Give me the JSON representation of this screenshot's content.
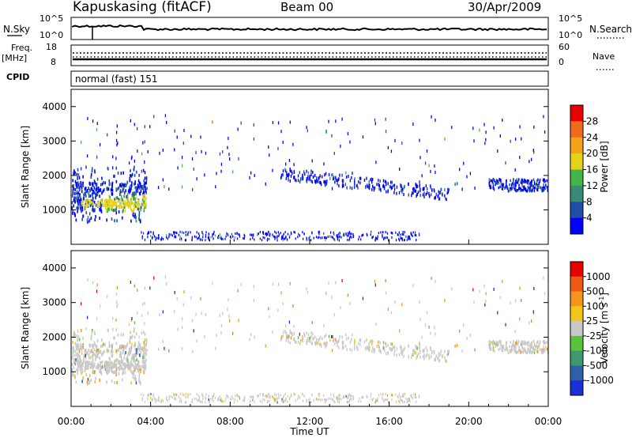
{
  "header": {
    "station": "Kapuskasing (fitACF)",
    "beam": "Beam 00",
    "date": "30/Apr/2009"
  },
  "top_panels": {
    "nsky_label": "N.Sky",
    "nsearch_label": "N.Search",
    "noise_ticks": [
      "10^5",
      "10^0"
    ],
    "freq_label": "Freq.",
    "freq_unit": "[MHz]",
    "freq_ticks": [
      "18",
      "8"
    ],
    "nave_label": "Nave",
    "nave_ticks": [
      "60",
      "0"
    ],
    "cpid_label": "CPID",
    "cpid_value": "normal (fast) 151"
  },
  "chart_data": [
    {
      "type": "heatmap",
      "title": "",
      "xlabel": "Time UT",
      "ylabel": "Slant Range [km]",
      "xlim": [
        "00:00",
        "24:00"
      ],
      "ylim": [
        0,
        4500
      ],
      "x_ticks": [
        "00:00",
        "04:00",
        "08:00",
        "12:00",
        "16:00",
        "20:00",
        "00:00"
      ],
      "y_ticks": [
        1000,
        2000,
        3000,
        4000
      ],
      "colorbar": {
        "label": "Power [dB]",
        "ticks": [
          "4",
          "8",
          "12",
          "16",
          "20",
          "24",
          "28"
        ],
        "colors": [
          "#0000ff",
          "#1f4fa6",
          "#3a8a7a",
          "#44b54a",
          "#e7d21a",
          "#f3a21a",
          "#ef6a1a",
          "#e60000"
        ]
      },
      "echo_regions": [
        {
          "t_start": "00:00",
          "t_end": "04:00",
          "range_km": [
            600,
            2100
          ],
          "level": "4-20 dB"
        },
        {
          "t_start": "10:00",
          "t_end": "18:00",
          "range_km": [
            1300,
            2100
          ],
          "level": "4-8 dB"
        },
        {
          "t_start": "21:00",
          "t_end": "24:00",
          "range_km": [
            1400,
            1900
          ],
          "level": "4-12 dB"
        }
      ]
    },
    {
      "type": "heatmap",
      "title": "",
      "xlabel": "Time UT",
      "ylabel": "Slant Range [km]",
      "xlim": [
        "00:00",
        "24:00"
      ],
      "ylim": [
        0,
        4500
      ],
      "x_ticks": [
        "00:00",
        "04:00",
        "08:00",
        "12:00",
        "16:00",
        "20:00",
        "00:00"
      ],
      "y_ticks": [
        1000,
        2000,
        3000,
        4000
      ],
      "colorbar": {
        "label": "Velocity [m s^-1]",
        "ticks": [
          "1000",
          "500",
          "100",
          "25",
          "-25",
          "-100",
          "-500",
          "-1000"
        ],
        "colors": [
          "#1a2fd6",
          "#2f5fa8",
          "#3e9a6e",
          "#58c43a",
          "#c8c8c8",
          "#f4c61a",
          "#f4961a",
          "#ee5a14",
          "#e60000"
        ]
      },
      "echo_regions": [
        {
          "t_start": "00:00",
          "t_end": "04:00",
          "range_km": [
            600,
            2100
          ],
          "level": "-25 to 25 m/s"
        },
        {
          "t_start": "10:00",
          "t_end": "18:00",
          "range_km": [
            1300,
            2100
          ],
          "level": "-25 to 25 m/s"
        },
        {
          "t_start": "21:00",
          "t_end": "24:00",
          "range_km": [
            1400,
            1900
          ],
          "level": "-25 to 25 m/s"
        }
      ]
    }
  ]
}
